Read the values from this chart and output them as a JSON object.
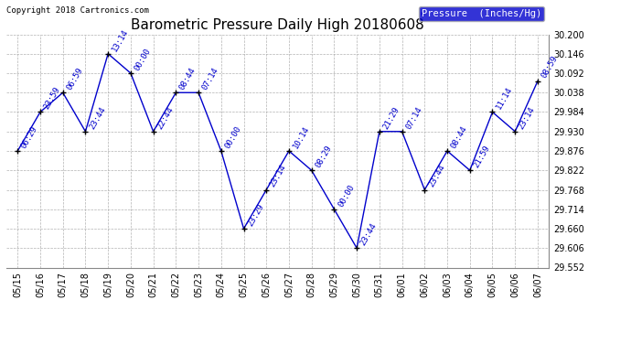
{
  "title": "Barometric Pressure Daily High 20180608",
  "copyright": "Copyright 2018 Cartronics.com",
  "legend_label": "Pressure  (Inches/Hg)",
  "dates": [
    "05/15",
    "05/16",
    "05/17",
    "05/18",
    "05/19",
    "05/20",
    "05/21",
    "05/22",
    "05/23",
    "05/24",
    "05/25",
    "05/26",
    "05/27",
    "05/28",
    "05/29",
    "05/30",
    "05/31",
    "06/01",
    "06/02",
    "06/03",
    "06/04",
    "06/05",
    "06/06",
    "06/07"
  ],
  "values": [
    29.876,
    29.984,
    30.038,
    29.93,
    30.146,
    30.092,
    29.93,
    30.038,
    30.038,
    29.876,
    29.66,
    29.768,
    29.876,
    29.822,
    29.714,
    29.606,
    29.93,
    29.93,
    29.768,
    29.876,
    29.822,
    29.984,
    29.93,
    30.07
  ],
  "times": [
    "06:29",
    "23:59",
    "06:59",
    "23:44",
    "13:14",
    "00:00",
    "22:44",
    "08:44",
    "07:14",
    "00:00",
    "23:29",
    "23:14",
    "10:14",
    "08:29",
    "00:00",
    "23:44",
    "21:29",
    "07:14",
    "23:44",
    "08:44",
    "21:59",
    "11:14",
    "23:14",
    "08:59"
  ],
  "ylim": [
    29.552,
    30.2
  ],
  "yticks": [
    29.552,
    29.606,
    29.66,
    29.714,
    29.768,
    29.822,
    29.876,
    29.93,
    29.984,
    30.038,
    30.092,
    30.146,
    30.2
  ],
  "line_color": "#0000cc",
  "marker_color": "#000000",
  "bg_color": "#ffffff",
  "grid_color": "#aaaaaa",
  "title_fontsize": 11,
  "tick_fontsize": 7,
  "annotation_fontsize": 6.5,
  "legend_bg": "#0000cc",
  "legend_fg": "#ffffff"
}
